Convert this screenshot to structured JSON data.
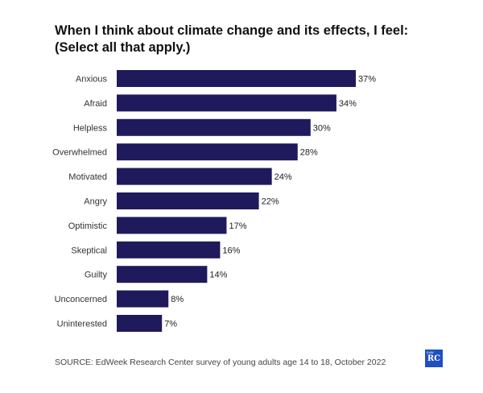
{
  "title": "When I think about climate change and its effects, I feel: (Select all that apply.)",
  "source": "SOURCE: EdWeek Research Center survey of young adults age 14 to 18, October 2022",
  "logo": {
    "top": "EdW",
    "main": "RC"
  },
  "colors": {
    "bar": "#1f1a5c",
    "label": "#333333"
  },
  "chart_data": {
    "type": "bar",
    "orientation": "horizontal",
    "categories": [
      "Anxious",
      "Afraid",
      "Helpless",
      "Overwhelmed",
      "Motivated",
      "Angry",
      "Optimistic",
      "Skeptical",
      "Guilty",
      "Unconcerned",
      "Uninterested"
    ],
    "values": [
      37,
      34,
      30,
      28,
      24,
      22,
      17,
      16,
      14,
      8,
      7
    ],
    "value_labels": [
      "37%",
      "34%",
      "30%",
      "28%",
      "24%",
      "22%",
      "17%",
      "16%",
      "14%",
      "8%",
      "7%"
    ],
    "xlim": [
      0,
      37
    ],
    "grid": false,
    "legend": false
  }
}
